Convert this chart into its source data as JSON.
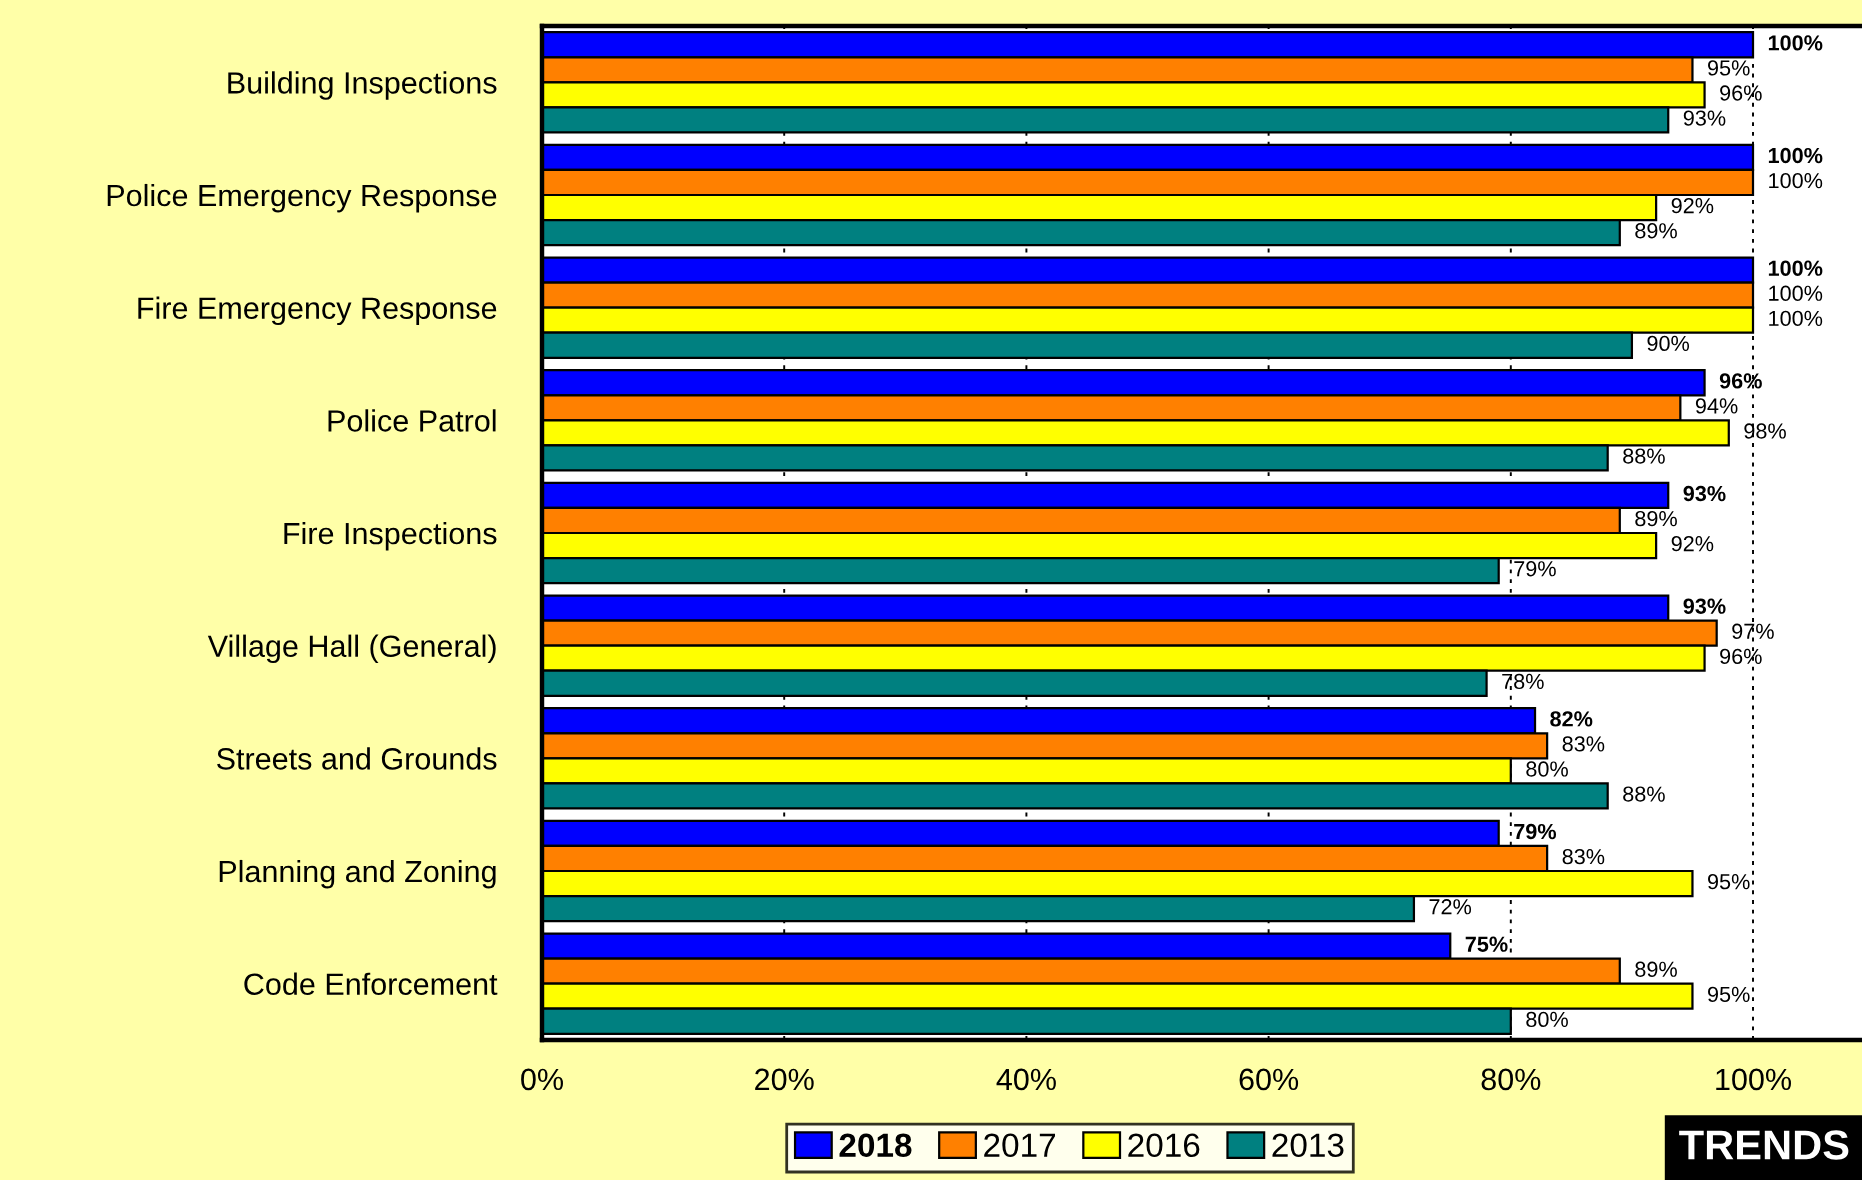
{
  "chart_data": {
    "type": "bar",
    "orientation": "horizontal",
    "categories": [
      "Building Inspections",
      "Police Emergency Response",
      "Fire Emergency Response",
      "Police Patrol",
      "Fire Inspections",
      "Village Hall (General)",
      "Streets and Grounds",
      "Planning and Zoning",
      "Code Enforcement"
    ],
    "series": [
      {
        "name": "2018",
        "color": "#0000ff",
        "values": [
          100,
          100,
          100,
          96,
          93,
          93,
          82,
          79,
          75
        ],
        "value_labels": [
          "100%",
          "100%",
          "100%",
          "96%",
          "93%",
          "93%",
          "82%",
          "79%",
          "75%"
        ]
      },
      {
        "name": "2017",
        "color": "#ff8000",
        "values": [
          95,
          100,
          100,
          94,
          89,
          97,
          83,
          83,
          89
        ],
        "value_labels": [
          "95%",
          "100%",
          "100%",
          "94%",
          "89%",
          "97%",
          "83%",
          "83%",
          "89%"
        ]
      },
      {
        "name": "2016",
        "color": "#ffff00",
        "values": [
          96,
          92,
          100,
          98,
          92,
          96,
          80,
          95,
          95
        ],
        "value_labels": [
          "96%",
          "92%",
          "100%",
          "98%",
          "92%",
          "96%",
          "80%",
          "95%",
          "95%"
        ]
      },
      {
        "name": "2013",
        "color": "#008080",
        "values": [
          93,
          89,
          90,
          88,
          79,
          78,
          88,
          72,
          80
        ],
        "value_labels": [
          "93%",
          "89%",
          "90%",
          "88%",
          "79%",
          "78%",
          "88%",
          "72%",
          "80%"
        ]
      }
    ],
    "xlim": [
      0,
      109
    ],
    "xticks": [
      {
        "value": 0,
        "label": "0%"
      },
      {
        "value": 20,
        "label": "20%"
      },
      {
        "value": 40,
        "label": "40%"
      },
      {
        "value": 60,
        "label": "60%"
      },
      {
        "value": 80,
        "label": "80%"
      },
      {
        "value": 100,
        "label": "100%"
      }
    ],
    "grid": "x",
    "legend": "bottom",
    "annotations": [
      "TRENDS"
    ]
  }
}
